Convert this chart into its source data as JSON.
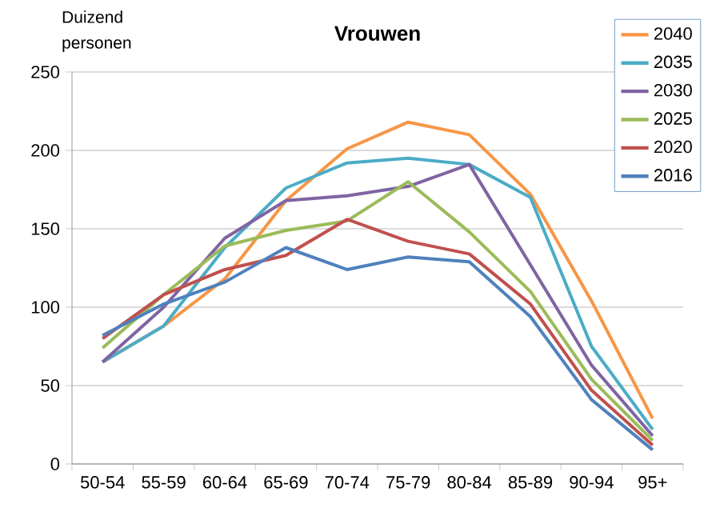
{
  "chart_data": {
    "type": "line",
    "title": "Vrouwen",
    "ylabel": "Duizend personen",
    "categories": [
      "50-54",
      "55-59",
      "60-64",
      "65-69",
      "70-74",
      "75-79",
      "80-84",
      "85-89",
      "90-94",
      "95+"
    ],
    "series": [
      {
        "name": "2040",
        "color": "#f79646",
        "values": [
          65,
          88,
          118,
          168,
          201,
          218,
          210,
          172,
          104,
          29
        ]
      },
      {
        "name": "2035",
        "color": "#4bacc6",
        "values": [
          65,
          88,
          138,
          176,
          192,
          195,
          191,
          170,
          75,
          22
        ]
      },
      {
        "name": "2030",
        "color": "#8064a2",
        "values": [
          65,
          100,
          144,
          168,
          171,
          177,
          191,
          127,
          63,
          18
        ]
      },
      {
        "name": "2025",
        "color": "#9bbb59",
        "values": [
          74,
          108,
          139,
          149,
          155,
          180,
          148,
          110,
          54,
          15
        ]
      },
      {
        "name": "2020",
        "color": "#c0504d",
        "values": [
          80,
          108,
          124,
          133,
          156,
          142,
          134,
          102,
          47,
          12
        ]
      },
      {
        "name": "2016",
        "color": "#4f81bd",
        "values": [
          82,
          102,
          116,
          138,
          124,
          132,
          129,
          94,
          41,
          9
        ]
      }
    ],
    "ylim": [
      0,
      250
    ],
    "yticks": [
      0,
      50,
      100,
      150,
      200,
      250
    ],
    "grid": "y",
    "legend": "top right",
    "marker": "none",
    "line_style": "solid"
  }
}
